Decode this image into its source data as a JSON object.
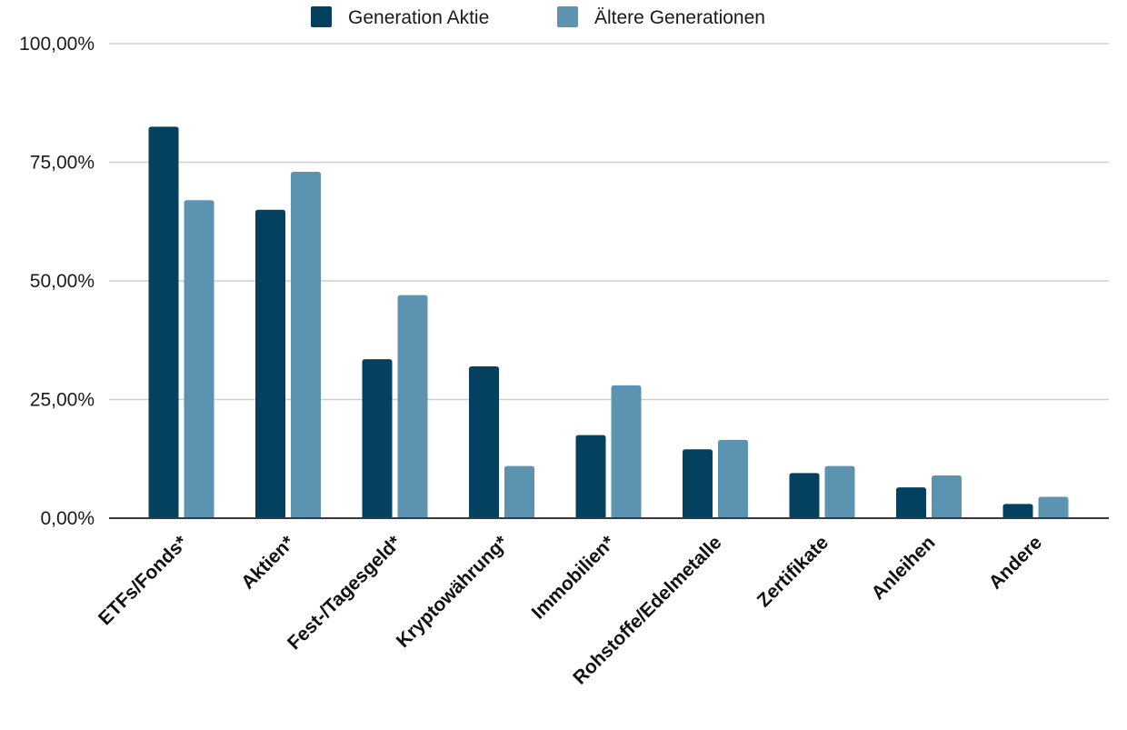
{
  "chart_data": {
    "type": "bar",
    "categories": [
      "ETFs/Fonds*",
      "Aktien*",
      "Fest-/Tagesgeld*",
      "Kryptowährung*",
      "Immobilien*",
      "Rohstoffe/Edelmetalle",
      "Zertifikate",
      "Anleihen",
      "Andere"
    ],
    "series": [
      {
        "name": "Generation Aktie",
        "color": "#04415f",
        "values": [
          82.5,
          65.0,
          33.5,
          32.0,
          17.5,
          14.5,
          9.5,
          6.5,
          3.0
        ]
      },
      {
        "name": "Ältere Generationen",
        "color": "#5b93b0",
        "values": [
          67.0,
          73.0,
          47.0,
          11.0,
          28.0,
          16.5,
          11.0,
          9.0,
          4.5
        ]
      }
    ],
    "y_ticks": [
      "0,00%",
      "25,00%",
      "50,00%",
      "75,00%",
      "100,00%"
    ],
    "ylim": [
      0,
      100
    ],
    "grid": true,
    "legend_position": "top-center"
  }
}
